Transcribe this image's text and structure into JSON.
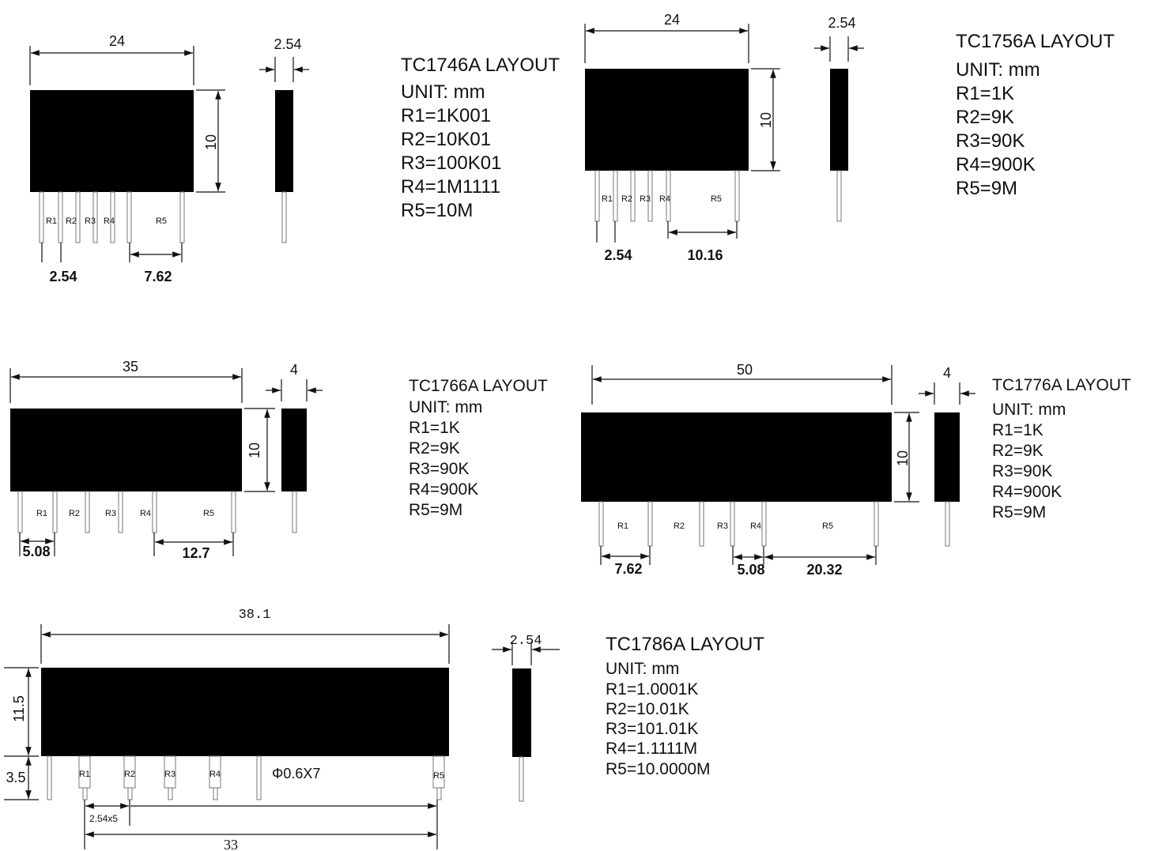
{
  "layouts": [
    {
      "title": "TC1746A LAYOUT",
      "unit": "UNIT: mm",
      "specs": [
        "R1=1K001",
        "R2=10K01",
        "R3=100K01",
        "R4=1M1111",
        "R5=10M"
      ],
      "dims": {
        "width": "24",
        "height": "10",
        "thickness": "2.54",
        "pitch": "2.54",
        "span": "7.62"
      },
      "pins": [
        "R1",
        "R2",
        "R3",
        "R4",
        "R5"
      ]
    },
    {
      "title": "TC1756A LAYOUT",
      "unit": "UNIT: mm",
      "specs": [
        "R1=1K",
        "R2=9K",
        "R3=90K",
        "R4=900K",
        "R5=9M"
      ],
      "dims": {
        "width": "24",
        "height": "10",
        "thickness": "2.54",
        "pitch": "2.54",
        "span": "10.16"
      },
      "pins": [
        "R1",
        "R2",
        "R3",
        "R4",
        "R5"
      ]
    },
    {
      "title": "TC1766A LAYOUT",
      "unit": "UNIT: mm",
      "specs": [
        "R1=1K",
        "R2=9K",
        "R3=90K",
        "R4=900K",
        "R5=9M"
      ],
      "dims": {
        "width": "35",
        "height": "10",
        "thickness": "4",
        "pitch": "5.08",
        "span": "12.7"
      },
      "pins": [
        "R1",
        "R2",
        "R3",
        "R4",
        "R5"
      ]
    },
    {
      "title": "TC1776A LAYOUT",
      "unit": "UNIT: mm",
      "specs": [
        "R1=1K",
        "R2=9K",
        "R3=90K",
        "R4=900K",
        "R5=9M"
      ],
      "dims": {
        "width": "50",
        "height": "10",
        "thickness": "4",
        "pitch": "7.62",
        "pitch2": "5.08",
        "span": "20.32"
      },
      "pins": [
        "R1",
        "R2",
        "R3",
        "R4",
        "R5"
      ]
    },
    {
      "title": "TC1786A LAYOUT",
      "unit": "UNIT: mm",
      "specs": [
        "R1=1.0001K",
        "R2=10.01K",
        "R3=101.01K",
        "R4=1.1111M",
        "R5=10.0000M"
      ],
      "dims": {
        "width": "38.1",
        "height": "11.5",
        "lead_length": "3.5",
        "thickness": "2.54",
        "pitch": "2.54x5",
        "span": "33",
        "lead_note": "Φ0.6X7"
      },
      "pins": [
        "R1",
        "R2",
        "R3",
        "R4",
        "R5"
      ]
    }
  ]
}
